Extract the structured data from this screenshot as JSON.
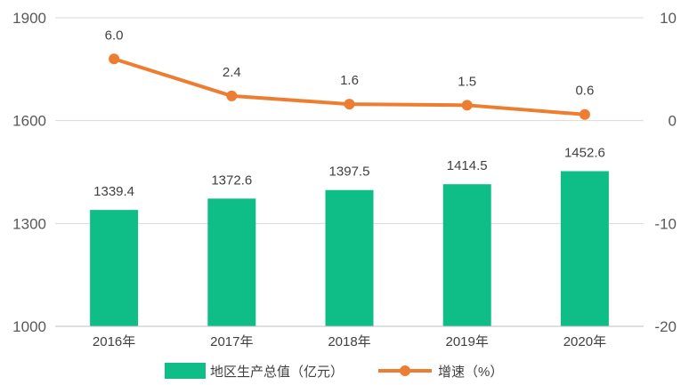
{
  "chart_data": {
    "type": "bar+line",
    "categories": [
      "2016年",
      "2017年",
      "2018年",
      "2019年",
      "2020年"
    ],
    "series": [
      {
        "name": "地区生产总值（亿元）",
        "type": "bar",
        "axis": "left",
        "values": [
          1339.4,
          1372.6,
          1397.5,
          1414.5,
          1452.6
        ],
        "labels": [
          "1339.4",
          "1372.6",
          "1397.5",
          "1414.5",
          "1452.6"
        ],
        "color": "#0fbe87"
      },
      {
        "name": "增速（%）",
        "type": "line",
        "axis": "right",
        "values": [
          6.0,
          2.4,
          1.6,
          1.5,
          0.6
        ],
        "labels": [
          "6.0",
          "2.4",
          "1.6",
          "1.5",
          "0.6"
        ],
        "color": "#ed7d31"
      }
    ],
    "y_left": {
      "min": 1000,
      "max": 1900,
      "ticks": [
        1000,
        1300,
        1600,
        1900
      ],
      "tick_labels": [
        "1000",
        "1300",
        "1600",
        "1900"
      ]
    },
    "y_right": {
      "min": -20,
      "max": 10,
      "ticks": [
        -20,
        -10,
        0,
        10
      ],
      "tick_labels": [
        "-20",
        "-10",
        "0",
        "10"
      ]
    },
    "grid": true,
    "legend": "bottom-center"
  }
}
